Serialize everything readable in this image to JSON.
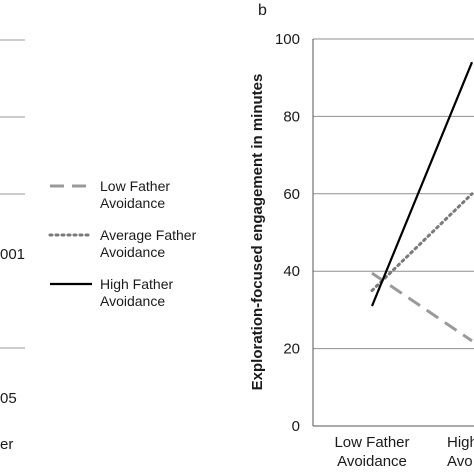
{
  "left_fragments": {
    "value_a": "001",
    "value_b": "05",
    "value_c": "er"
  },
  "panel_label": "b",
  "legend": {
    "items": [
      {
        "label": "Low Father\nAvoidance",
        "style": "dashed",
        "color": "#9a9a9a"
      },
      {
        "label": "Average Father\nAvoidance",
        "style": "dotted",
        "color": "#7a7a7a"
      },
      {
        "label": "High Father\nAvoidance",
        "style": "solid",
        "color": "#000000"
      }
    ]
  },
  "chart_data": {
    "type": "line",
    "title": "",
    "xlabel": "",
    "ylabel": "Exploration-focused engagement in minutes",
    "categories": [
      "Low Father\nAvoidance",
      "High Father\nAvoidance"
    ],
    "category_labels_visible": [
      "Low Father\nAvoidance",
      "High\nAvo"
    ],
    "ylim": [
      0,
      100
    ],
    "yticks": [
      0,
      20,
      40,
      60,
      80,
      100
    ],
    "grid": true,
    "series": [
      {
        "name": "Low Father Avoidance",
        "style": "dashed",
        "color": "#9a9a9a",
        "values": [
          39.5,
          22
        ]
      },
      {
        "name": "Average Father Avoidance",
        "style": "dotted",
        "color": "#7a7a7a",
        "values": [
          35,
          60
        ]
      },
      {
        "name": "High Father Avoidance",
        "style": "solid",
        "color": "#000000",
        "values": [
          31,
          94
        ]
      }
    ]
  }
}
